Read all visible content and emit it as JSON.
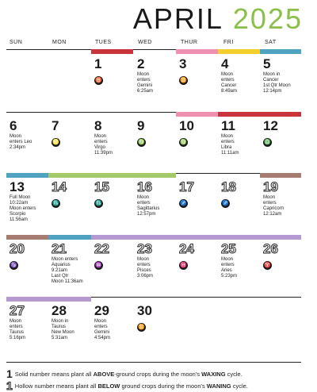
{
  "title": {
    "month": "APRIL",
    "year": "2025"
  },
  "days": [
    "SUN",
    "MON",
    "TUES",
    "WED",
    "THUR",
    "FRI",
    "SAT"
  ],
  "colors": {
    "red": "#c8353d",
    "pink": "#ef8fb1",
    "yellow": "#f2cf2d",
    "teal": "#4fa2c0",
    "green": "#a3c96a",
    "purple": "#b49ad0",
    "brown": "#a77d73"
  },
  "legend": {
    "solid_mark": "1",
    "hollow_mark": "1",
    "solid_text_1": "Solid number means plant all ",
    "solid_bold_1": "ABOVE",
    "solid_text_2": "-ground crops during the moon's ",
    "solid_bold_2": "WAXING",
    "solid_text_3": " cycle.",
    "hollow_text_1": "Hollow number means plant all ",
    "hollow_bold_1": "BELOW",
    "hollow_text_2": " ground crops during the moon's ",
    "hollow_bold_2": "WANING",
    "hollow_text_3": " cycle."
  },
  "cells": [
    {
      "n": "1",
      "style": "solid",
      "glyph": "♉",
      "glyph_name": "taurus-icon",
      "note": ""
    },
    {
      "n": "2",
      "style": "solid",
      "glyph": "",
      "glyph_name": "",
      "note": "Moon\nenters\nGemini\n6:25am"
    },
    {
      "n": "3",
      "style": "solid",
      "glyph": "♊",
      "glyph_name": "gemini-icon",
      "note": ""
    },
    {
      "n": "4",
      "style": "solid",
      "glyph": "",
      "glyph_name": "",
      "note": "Moon\nenters\nCancer\n8:49am"
    },
    {
      "n": "5",
      "style": "solid",
      "glyph": "",
      "glyph_name": "",
      "note": "Moon in\nCancer\n1st Qtr Moon\n12:14pm"
    },
    {
      "n": "6",
      "style": "solid",
      "glyph": "",
      "glyph_name": "",
      "note": "Moon\nenters Leo\n2:34pm"
    },
    {
      "n": "7",
      "style": "solid",
      "glyph": "♌",
      "glyph_name": "leo-icon",
      "note": ""
    },
    {
      "n": "8",
      "style": "solid",
      "glyph": "",
      "glyph_name": "",
      "note": "Moon\nenters\nVirgo\n11:39pm"
    },
    {
      "n": "9",
      "style": "solid",
      "glyph": "♍",
      "glyph_name": "virgo-icon",
      "note": ""
    },
    {
      "n": "10",
      "style": "solid",
      "glyph": "♍",
      "glyph_name": "virgo-icon",
      "note": ""
    },
    {
      "n": "11",
      "style": "solid",
      "glyph": "",
      "glyph_name": "",
      "note": "Moon\nenters\nLibra\n11:11am"
    },
    {
      "n": "12",
      "style": "solid",
      "glyph": "♎",
      "glyph_name": "libra-icon",
      "note": ""
    },
    {
      "n": "13",
      "style": "solid",
      "glyph": "",
      "glyph_name": "",
      "note": "Full Moon\n10:22am\nMoon enters\nScorpio\n11:56am"
    },
    {
      "n": "14",
      "style": "hollow",
      "glyph": "♏",
      "glyph_name": "scorpio-icon",
      "note": ""
    },
    {
      "n": "15",
      "style": "hollow",
      "glyph": "♏",
      "glyph_name": "scorpio-icon",
      "note": ""
    },
    {
      "n": "16",
      "style": "hollow",
      "glyph": "",
      "glyph_name": "",
      "note": "Moon\nenters\nSagittarius\n12:57pm"
    },
    {
      "n": "17",
      "style": "hollow",
      "glyph": "♐",
      "glyph_name": "sagittarius-icon",
      "note": ""
    },
    {
      "n": "18",
      "style": "hollow",
      "glyph": "♐",
      "glyph_name": "sagittarius-icon",
      "note": ""
    },
    {
      "n": "19",
      "style": "hollow",
      "glyph": "",
      "glyph_name": "",
      "note": "Moon\nenters\nCapricorn\n12:12am"
    },
    {
      "n": "20",
      "style": "hollow",
      "glyph": "♑",
      "glyph_name": "capricorn-icon",
      "note": ""
    },
    {
      "n": "21",
      "style": "hollow",
      "glyph": "",
      "glyph_name": "",
      "note": "Moon enters\nAquarius\n9:21am\nLast Qtr\nMoon 11:36am"
    },
    {
      "n": "22",
      "style": "hollow",
      "glyph": "♒",
      "glyph_name": "aquarius-icon",
      "note": ""
    },
    {
      "n": "23",
      "style": "hollow",
      "glyph": "",
      "glyph_name": "",
      "note": "Moon\nenters\nPisces\n3:06pm"
    },
    {
      "n": "24",
      "style": "hollow",
      "glyph": "♓",
      "glyph_name": "pisces-icon",
      "note": ""
    },
    {
      "n": "25",
      "style": "hollow",
      "glyph": "",
      "glyph_name": "",
      "note": "Moon\nenters\nAries\n5:23pm"
    },
    {
      "n": "26",
      "style": "hollow",
      "glyph": "♈",
      "glyph_name": "aries-icon",
      "note": ""
    },
    {
      "n": "27",
      "style": "hollow",
      "glyph": "",
      "glyph_name": "",
      "note": "Moon\nenters\nTaurus\n5:16pm"
    },
    {
      "n": "28",
      "style": "solid",
      "glyph": "",
      "glyph_name": "",
      "note": "Moon in\nTaurus\nNew Moon\n5:31am"
    },
    {
      "n": "29",
      "style": "solid",
      "glyph": "",
      "glyph_name": "",
      "note": "Moon\nenters\nGemini\n4:54pm"
    },
    {
      "n": "30",
      "style": "solid",
      "glyph": "♊",
      "glyph_name": "gemini-icon",
      "note": ""
    }
  ]
}
